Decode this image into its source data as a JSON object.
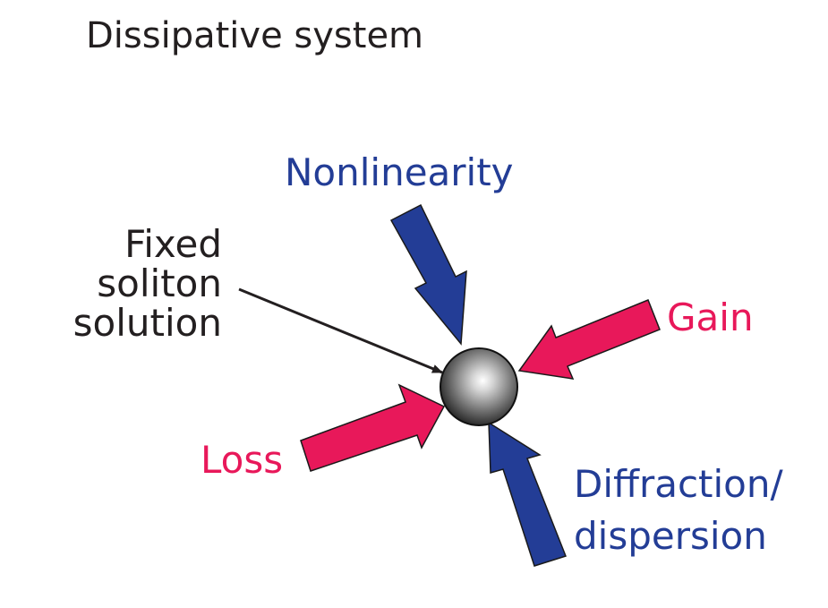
{
  "title": "Dissipative system",
  "labels": {
    "nonlinearity": "Nonlinearity",
    "gain": "Gain",
    "loss": "Loss",
    "fixed_soliton": [
      "Fixed",
      "soliton",
      "solution"
    ],
    "diffraction": [
      "Diffraction/",
      "dispersion"
    ]
  },
  "colors": {
    "blue": "#233d96",
    "pink": "#e8185a",
    "text": "#231f20",
    "outline": "#1a1a1a"
  }
}
